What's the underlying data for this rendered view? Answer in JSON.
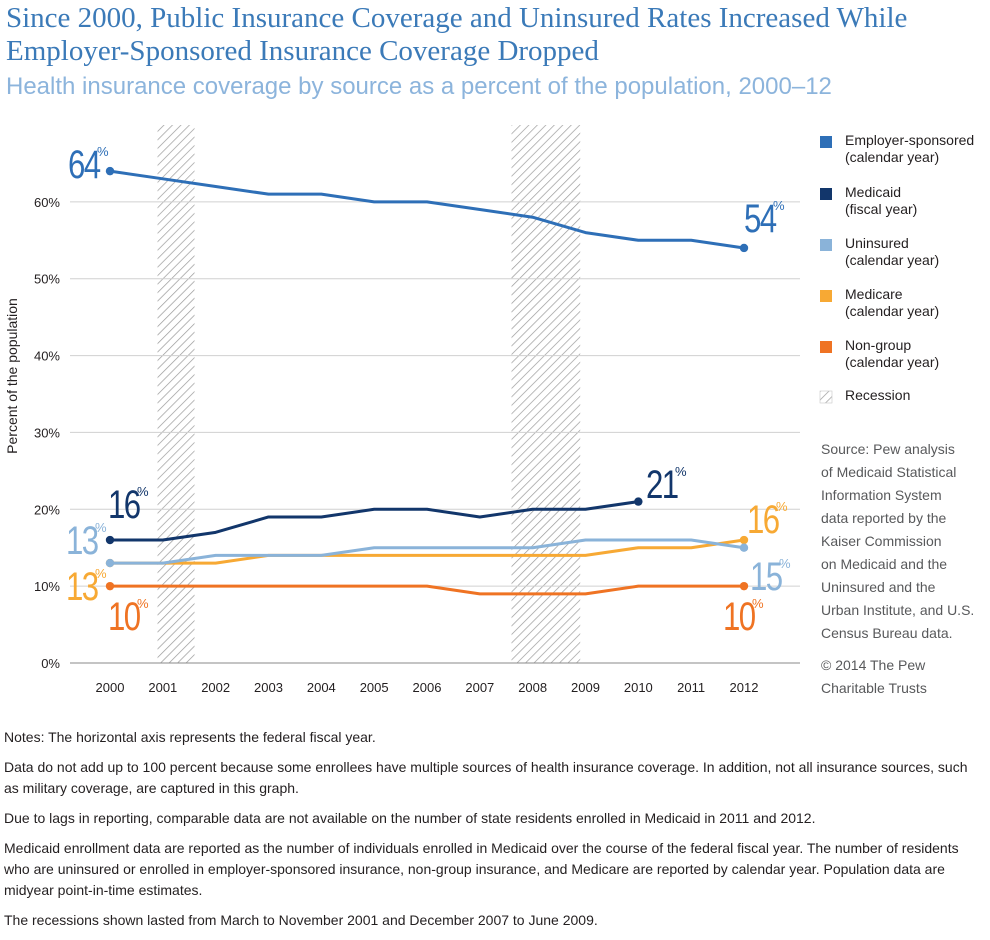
{
  "header": {
    "title": "Since 2000, Public Insurance Coverage and Uninsured Rates Increased While Employer-Sponsored Insurance Coverage Dropped",
    "subtitle": "Health insurance coverage by source as a percent of the population, 2000–12"
  },
  "chart_data": {
    "type": "line",
    "title": "Since 2000, Public Insurance Coverage and Uninsured Rates Increased While Employer-Sponsored Insurance Coverage Dropped",
    "subtitle": "Health insurance coverage by source as a percent of the population, 2000–12",
    "xlabel": "",
    "ylabel": "Percent of the population",
    "x": [
      2000,
      2001,
      2002,
      2003,
      2004,
      2005,
      2006,
      2007,
      2008,
      2009,
      2010,
      2011,
      2012
    ],
    "x_tick_labels": [
      "2000",
      "2001",
      "2002",
      "2003",
      "2004",
      "2005",
      "2006",
      "2007",
      "2008",
      "2009",
      "2010",
      "2011",
      "2012"
    ],
    "ylim": [
      0,
      70
    ],
    "y_ticks": [
      0,
      10,
      20,
      30,
      40,
      50,
      60
    ],
    "y_tick_labels": [
      "0%",
      "10%",
      "20%",
      "30%",
      "40%",
      "50%",
      "60%"
    ],
    "grid": true,
    "recessions": [
      {
        "start": 2000.9,
        "end": 2001.6
      },
      {
        "start": 2007.6,
        "end": 2008.9
      }
    ],
    "series": [
      {
        "name": "Employer-sponsored",
        "color": "#2e6fb7",
        "values": [
          64,
          63,
          62,
          61,
          61,
          60,
          60,
          59,
          58,
          56,
          55,
          55,
          54
        ],
        "start_label": "64",
        "end_label": "54"
      },
      {
        "name": "Medicaid",
        "color": "#12366b",
        "values": [
          16,
          16,
          17,
          19,
          19,
          20,
          20,
          19,
          20,
          20,
          21,
          null,
          null
        ],
        "start_label": "16",
        "end_label": "21"
      },
      {
        "name": "Uninsured",
        "color": "#8ab3d9",
        "values": [
          13,
          13,
          14,
          14,
          14,
          15,
          15,
          15,
          15,
          16,
          16,
          16,
          15
        ],
        "start_label": "13",
        "end_label": "15"
      },
      {
        "name": "Medicare",
        "color": "#f7a934",
        "values": [
          13,
          13,
          13,
          14,
          14,
          14,
          14,
          14,
          14,
          14,
          15,
          15,
          16
        ],
        "start_label": "13",
        "end_label": "16"
      },
      {
        "name": "Non-group",
        "color": "#ef7323",
        "values": [
          10,
          10,
          10,
          10,
          10,
          10,
          10,
          9,
          9,
          9,
          10,
          10,
          10
        ],
        "start_label": "10",
        "end_label": "10"
      }
    ],
    "percent_sign": "%"
  },
  "legend": {
    "items": [
      {
        "line1": "Employer-sponsored",
        "line2": "(calendar year)",
        "color": "#2e6fb7"
      },
      {
        "line1": "Medicaid",
        "line2": "(fiscal year)",
        "color": "#12366b"
      },
      {
        "line1": "Uninsured",
        "line2": "(calendar year)",
        "color": "#8ab3d9"
      },
      {
        "line1": "Medicare",
        "line2": "(calendar year)",
        "color": "#f7a934"
      },
      {
        "line1": "Non-group",
        "line2": "(calendar year)",
        "color": "#ef7323"
      }
    ],
    "recession_label": "Recession"
  },
  "source": {
    "lines": [
      "Source: Pew analysis",
      "of Medicaid Statistical",
      "Information System",
      "data reported by the",
      "Kaiser Commission",
      "on Medicaid and the",
      "Uninsured and the",
      "Urban Institute, and U.S.",
      "Census Bureau data."
    ],
    "copyright_lines": [
      "© 2014 The Pew",
      "Charitable Trusts"
    ]
  },
  "notes": [
    "Notes: The horizontal axis represents the federal fiscal year.",
    "Data do not add up to 100 percent because some enrollees have multiple sources of health insurance coverage. In addition, not all insurance sources, such as military coverage, are captured in this graph.",
    "Due to lags in reporting, comparable data are not available on the number of state residents enrolled in Medicaid in 2011 and 2012.",
    "Medicaid enrollment data are reported as the number of individuals enrolled in Medicaid over the course of the federal fiscal year. The number of residents who are uninsured or enrolled in employer-sponsored insurance, non-group insurance, and Medicare are reported by calendar year. Population data are midyear point-in-time estimates.",
    "The recessions shown lasted from March to November 2001 and December 2007 to June 2009."
  ]
}
